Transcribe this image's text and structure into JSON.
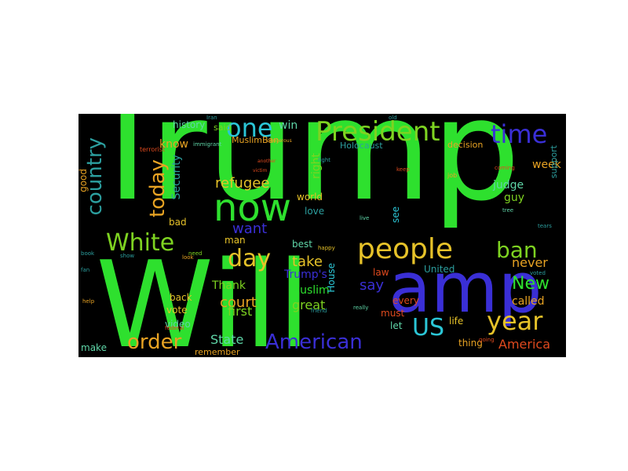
{
  "palette": {
    "canvas": "#000000",
    "page": "#ffffff",
    "green": "#2ee02e",
    "lime": "#7ed321",
    "blue": "#3a2fd6",
    "cyan": "#2bc6d6",
    "orange": "#e8a323",
    "yellow": "#e6c229",
    "red": "#e04a1e",
    "mint": "#5fd6a8",
    "teal": "#2c9f9f"
  },
  "words": [
    {
      "text": "Trump",
      "color": "#2ee02e",
      "rotate": false
    },
    {
      "text": "Will",
      "color": "#2ee02e",
      "rotate": false
    },
    {
      "text": "amp",
      "color": "#3a2fd6",
      "rotate": false
    },
    {
      "text": "President",
      "color": "#7ed321",
      "rotate": false
    },
    {
      "text": "people",
      "color": "#e6c229",
      "rotate": false
    },
    {
      "text": "now",
      "color": "#2ee02e",
      "rotate": false
    },
    {
      "text": "one",
      "color": "#2bc6d6",
      "rotate": false
    },
    {
      "text": "time",
      "color": "#3a2fd6",
      "rotate": false
    },
    {
      "text": "year",
      "color": "#e6c229",
      "rotate": false
    },
    {
      "text": "US",
      "color": "#2bc6d6",
      "rotate": false
    },
    {
      "text": "American",
      "color": "#3a2fd6",
      "rotate": false
    },
    {
      "text": "order",
      "color": "#e8a323",
      "rotate": false
    },
    {
      "text": "White",
      "color": "#7ed321",
      "rotate": false
    },
    {
      "text": "day",
      "color": "#e6c229",
      "rotate": false
    },
    {
      "text": "country",
      "color": "#2c9f9f",
      "rotate": true
    },
    {
      "text": "today",
      "color": "#e8a323",
      "rotate": true
    },
    {
      "text": "ban",
      "color": "#7ed321",
      "rotate": false
    },
    {
      "text": "New",
      "color": "#2ee02e",
      "rotate": false
    },
    {
      "text": "America",
      "color": "#e04a1e",
      "rotate": false
    },
    {
      "text": "refugee",
      "color": "#e6c229",
      "rotate": false
    },
    {
      "text": "want",
      "color": "#3a2fd6",
      "rotate": false
    },
    {
      "text": "take",
      "color": "#e6c229",
      "rotate": false
    },
    {
      "text": "Trump's",
      "color": "#3a2fd6",
      "rotate": false
    },
    {
      "text": "Muslim",
      "color": "#2ee02e",
      "rotate": false
    },
    {
      "text": "great",
      "color": "#7ed321",
      "rotate": false
    },
    {
      "text": "say",
      "color": "#3a2fd6",
      "rotate": false
    },
    {
      "text": "court",
      "color": "#e8a323",
      "rotate": false
    },
    {
      "text": "first",
      "color": "#7ed321",
      "rotate": false
    },
    {
      "text": "Thank",
      "color": "#7ed321",
      "rotate": false
    },
    {
      "text": "State",
      "color": "#5fd6a8",
      "rotate": false
    },
    {
      "text": "never",
      "color": "#e8a323",
      "rotate": false
    },
    {
      "text": "called",
      "color": "#e8a323",
      "rotate": false
    },
    {
      "text": "judge",
      "color": "#5fd6a8",
      "rotate": false
    },
    {
      "text": "guy",
      "color": "#7ed321",
      "rotate": false
    },
    {
      "text": "week",
      "color": "#e8a323",
      "rotate": false
    },
    {
      "text": "know",
      "color": "#e8a323",
      "rotate": false
    },
    {
      "text": "history",
      "color": "#5fd6a8",
      "rotate": false
    },
    {
      "text": "win",
      "color": "#5fd6a8",
      "rotate": false
    },
    {
      "text": "MuslimBan",
      "color": "#e8a323",
      "rotate": false
    },
    {
      "text": "Holocaust",
      "color": "#2c9f9f",
      "rotate": false
    },
    {
      "text": "decision",
      "color": "#e8a323",
      "rotate": false
    },
    {
      "text": "Security",
      "color": "#2c9f9f",
      "rotate": true
    },
    {
      "text": "good",
      "color": "#e8a323",
      "rotate": true
    },
    {
      "text": "right",
      "color": "#7ed321",
      "rotate": true
    },
    {
      "text": "world",
      "color": "#e6c229",
      "rotate": false
    },
    {
      "text": "love",
      "color": "#2c9f9f",
      "rotate": false
    },
    {
      "text": "bad",
      "color": "#e6c229",
      "rotate": false
    },
    {
      "text": "man",
      "color": "#e6c229",
      "rotate": false
    },
    {
      "text": "best",
      "color": "#5fd6a8",
      "rotate": false
    },
    {
      "text": "United",
      "color": "#2c9f9f",
      "rotate": false
    },
    {
      "text": "House",
      "color": "#2bc6d6",
      "rotate": true
    },
    {
      "text": "see",
      "color": "#2bc6d6",
      "rotate": true
    },
    {
      "text": "law",
      "color": "#e04a1e",
      "rotate": false
    },
    {
      "text": "every",
      "color": "#e04a1e",
      "rotate": false
    },
    {
      "text": "must",
      "color": "#e04a1e",
      "rotate": false
    },
    {
      "text": "let",
      "color": "#5fd6a8",
      "rotate": false
    },
    {
      "text": "life",
      "color": "#e6c229",
      "rotate": false
    },
    {
      "text": "thing",
      "color": "#e8a323",
      "rotate": false
    },
    {
      "text": "back",
      "color": "#e6c229",
      "rotate": false
    },
    {
      "text": "vote",
      "color": "#e6c229",
      "rotate": false
    },
    {
      "text": "video",
      "color": "#5fd6a8",
      "rotate": false
    },
    {
      "text": "make",
      "color": "#5fd6a8",
      "rotate": false
    },
    {
      "text": "remember",
      "color": "#e8a323",
      "rotate": false
    },
    {
      "text": "said",
      "color": "#7ed321",
      "rotate": false
    },
    {
      "text": "support",
      "color": "#2c9f9f",
      "rotate": true
    },
    {
      "text": "terrorist",
      "color": "#e04a1e",
      "rotate": false
    },
    {
      "text": "immigrant",
      "color": "#5fd6a8",
      "rotate": false
    },
    {
      "text": "dangerous",
      "color": "#e8a323",
      "rotate": false
    },
    {
      "text": "victim",
      "color": "#e04a1e",
      "rotate": false
    },
    {
      "text": "another",
      "color": "#e04a1e",
      "rotate": false
    },
    {
      "text": "coming",
      "color": "#e04a1e",
      "rotate": false
    },
    {
      "text": "tears",
      "color": "#2c9f9f",
      "rotate": false
    },
    {
      "text": "voted",
      "color": "#2c9f9f",
      "rotate": false
    },
    {
      "text": "fan",
      "color": "#2c9f9f",
      "rotate": false
    },
    {
      "text": "help",
      "color": "#e8a323",
      "rotate": false
    },
    {
      "text": "book",
      "color": "#2c9f9f",
      "rotate": false
    },
    {
      "text": "need",
      "color": "#7ed321",
      "rotate": false
    },
    {
      "text": "look",
      "color": "#e8a323",
      "rotate": false
    },
    {
      "text": "federal",
      "color": "#e04a1e",
      "rotate": false
    },
    {
      "text": "Iran",
      "color": "#2c9f9f",
      "rotate": false
    },
    {
      "text": "job",
      "color": "#e8a323",
      "rotate": false
    },
    {
      "text": "keep",
      "color": "#e04a1e",
      "rotate": false
    },
    {
      "text": "going",
      "color": "#e04a1e",
      "rotate": false
    },
    {
      "text": "old",
      "color": "#2c9f9f",
      "rotate": false
    },
    {
      "text": "friend",
      "color": "#2c9f9f",
      "rotate": false
    },
    {
      "text": "happy",
      "color": "#e6c229",
      "rotate": false
    },
    {
      "text": "really",
      "color": "#5fd6a8",
      "rotate": false
    },
    {
      "text": "tree",
      "color": "#5fd6a8",
      "rotate": false
    },
    {
      "text": "show",
      "color": "#2c9f9f",
      "rotate": false
    },
    {
      "text": "fight",
      "color": "#2c9f9f",
      "rotate": false
    },
    {
      "text": "live",
      "color": "#5fd6a8",
      "rotate": false
    }
  ]
}
